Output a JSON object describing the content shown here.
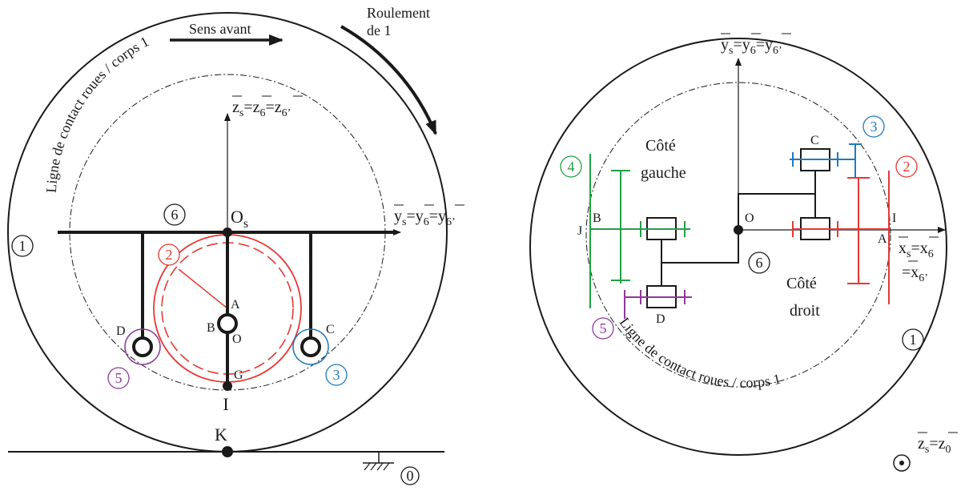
{
  "colors": {
    "black": "#1a1a1a",
    "red": "#e53935",
    "blue": "#1e7bc0",
    "green": "#22a045",
    "purple": "#8e3a9a"
  },
  "left": {
    "sens_avant": "Sens avant",
    "roulement": [
      "Roulement",
      "de 1"
    ],
    "contact_line": "Ligne de contact roues / corps 1",
    "axis_z": {
      "a": "z",
      "s": "s",
      "eq1": "=z",
      "s1": "6",
      "eq2": "=z",
      "s2": "6’"
    },
    "axis_y": {
      "a": "y",
      "s": "s",
      "eq1": "=y",
      "s1": "6",
      "eq2": "=y",
      "s2": "6’"
    },
    "os": {
      "a": "O",
      "s": "s"
    },
    "pts": {
      "A": "A",
      "B": "B",
      "O": "O",
      "G": "G",
      "C": "C",
      "D": "D",
      "I": "I",
      "K": "K"
    },
    "nums": {
      "n1": "1",
      "n2": "2",
      "n3": "3",
      "n5": "5",
      "n6": "6",
      "n0": "0"
    }
  },
  "right": {
    "axis_y": {
      "a": "y",
      "s": "s",
      "eq1": "=y",
      "s1": "6",
      "eq2": "=y",
      "s2": "6’"
    },
    "axis_x": {
      "a": "x",
      "s": "s",
      "eq1": "=x",
      "s1": "6",
      "eq2": "=x",
      "s2": "6’"
    },
    "axis_z": {
      "a": "z",
      "s": "s",
      "eq1": "=z",
      "s1": "0"
    },
    "cote_gauche": [
      "Côté",
      "gauche"
    ],
    "cote_droit": [
      "Côté",
      "droit"
    ],
    "contact_line": "Ligne de contact roues / corps 1",
    "pts": {
      "C": "C",
      "D": "D",
      "O": "O",
      "B": "B",
      "J": "J",
      "I": "I",
      "A": "A"
    },
    "nums": {
      "n1": "1",
      "n2": "2",
      "n3": "3",
      "n4": "4",
      "n5": "5",
      "n6": "6"
    }
  }
}
